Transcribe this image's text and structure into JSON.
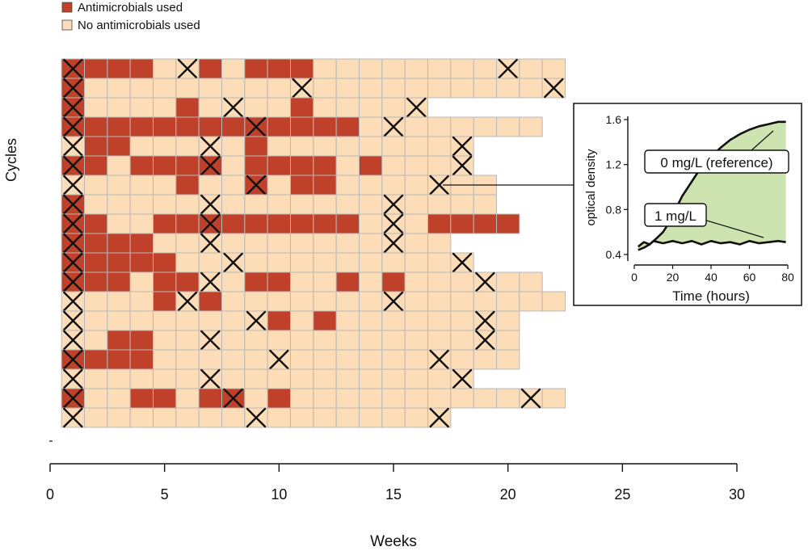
{
  "colors": {
    "used": "#C0412A",
    "unused": "#FCDDB8",
    "fill_area": "#CDE4B0",
    "curve": "#111111"
  },
  "legend": {
    "used_label": "Antimicrobials used",
    "unused_label": "No antimicrobials used"
  },
  "chart_data": [
    {
      "type": "heatmap",
      "xlabel": "Weeks",
      "ylabel": "Cycles",
      "xlim": [
        0,
        30
      ],
      "xticks": [
        0,
        5,
        10,
        15,
        20,
        25,
        30
      ],
      "cell_states": {
        "U": "Antimicrobials used",
        "N": "No antimicrobials used",
        "X": "marked with cross"
      },
      "rows": [
        {
          "cycle": 1,
          "used": [
            1,
            2,
            3,
            4,
            7,
            9,
            10,
            11
          ],
          "crosses": [
            1,
            6,
            20
          ],
          "weeks": 22
        },
        {
          "cycle": 2,
          "used": [
            1
          ],
          "crosses": [
            1,
            11,
            22
          ],
          "weeks": 22
        },
        {
          "cycle": 3,
          "used": [
            1,
            6,
            11
          ],
          "crosses": [
            1,
            8,
            16
          ],
          "weeks": 16
        },
        {
          "cycle": 4,
          "used": [
            1,
            2,
            3,
            4,
            5,
            6,
            7,
            8,
            9,
            10,
            11,
            12,
            13
          ],
          "crosses": [
            1,
            9,
            15
          ],
          "weeks": 21
        },
        {
          "cycle": 5,
          "used": [
            2,
            3,
            9
          ],
          "crosses": [
            1,
            7,
            18
          ],
          "weeks": 18
        },
        {
          "cycle": 6,
          "used": [
            1,
            2,
            4,
            5,
            6,
            7,
            9,
            10,
            11,
            12,
            14
          ],
          "crosses": [
            1,
            7,
            18
          ],
          "weeks": 18
        },
        {
          "cycle": 7,
          "used": [
            6,
            9,
            11,
            12
          ],
          "crosses": [
            1,
            9,
            17
          ],
          "weeks": 19
        },
        {
          "cycle": 8,
          "used": [
            1
          ],
          "crosses": [
            1,
            7,
            15
          ],
          "weeks": 19
        },
        {
          "cycle": 9,
          "used": [
            1,
            2,
            5,
            6,
            7,
            8,
            9,
            10,
            11,
            12,
            13,
            17,
            18,
            19,
            20
          ],
          "crosses": [
            1,
            7,
            15
          ],
          "weeks": 20
        },
        {
          "cycle": 10,
          "used": [
            1,
            2,
            3,
            4
          ],
          "crosses": [
            1,
            7,
            15
          ],
          "weeks": 17
        },
        {
          "cycle": 11,
          "used": [
            1,
            2,
            3,
            4,
            5
          ],
          "crosses": [
            1,
            8,
            18
          ],
          "weeks": 18
        },
        {
          "cycle": 12,
          "used": [
            1,
            2,
            3,
            5,
            6,
            9,
            10,
            13,
            15
          ],
          "crosses": [
            1,
            7,
            19
          ],
          "weeks": 21
        },
        {
          "cycle": 13,
          "used": [
            5,
            7
          ],
          "crosses": [
            1,
            6,
            15
          ],
          "weeks": 22
        },
        {
          "cycle": 14,
          "used": [
            10,
            12
          ],
          "crosses": [
            1,
            9,
            19
          ],
          "weeks": 20
        },
        {
          "cycle": 15,
          "used": [
            3,
            4
          ],
          "crosses": [
            1,
            7,
            19
          ],
          "weeks": 20
        },
        {
          "cycle": 16,
          "used": [
            1,
            2,
            3,
            4
          ],
          "crosses": [
            1,
            10,
            17
          ],
          "weeks": 20
        },
        {
          "cycle": 17,
          "used": [],
          "crosses": [
            1,
            7,
            18
          ],
          "weeks": 18
        },
        {
          "cycle": 18,
          "used": [
            1,
            4,
            5,
            7,
            8,
            10
          ],
          "crosses": [
            1,
            8,
            21
          ],
          "weeks": 22
        },
        {
          "cycle": 19,
          "used": [],
          "crosses": [
            1,
            9,
            17
          ],
          "weeks": 17
        }
      ]
    },
    {
      "type": "line",
      "xlabel": "Time (hours)",
      "ylabel": "optical density",
      "xlim": [
        0,
        80
      ],
      "ylim": [
        0.4,
        1.6
      ],
      "xticks": [
        0,
        20,
        40,
        60,
        80
      ],
      "yticks": [
        "0.4",
        "0.8",
        "1.2",
        "1.6"
      ],
      "annotations": [
        "0 mg/L (reference)",
        "1 mg/L"
      ],
      "series": [
        {
          "x": [
            2,
            5,
            8,
            10,
            12,
            15,
            18,
            20,
            25,
            30,
            35,
            40,
            45,
            50,
            55,
            60,
            65,
            70,
            75,
            79
          ],
          "y": [
            0.44,
            0.46,
            0.49,
            0.52,
            0.55,
            0.6,
            0.68,
            0.75,
            0.92,
            1.05,
            1.18,
            1.27,
            1.35,
            1.42,
            1.47,
            1.51,
            1.54,
            1.56,
            1.58,
            1.58
          ]
        },
        {
          "x": [
            2,
            5,
            8,
            10,
            15,
            20,
            25,
            30,
            35,
            40,
            45,
            50,
            55,
            60,
            65,
            70,
            75,
            79
          ],
          "y": [
            0.47,
            0.51,
            0.49,
            0.52,
            0.5,
            0.52,
            0.5,
            0.52,
            0.49,
            0.52,
            0.5,
            0.51,
            0.49,
            0.52,
            0.5,
            0.51,
            0.52,
            0.51
          ]
        }
      ]
    }
  ]
}
